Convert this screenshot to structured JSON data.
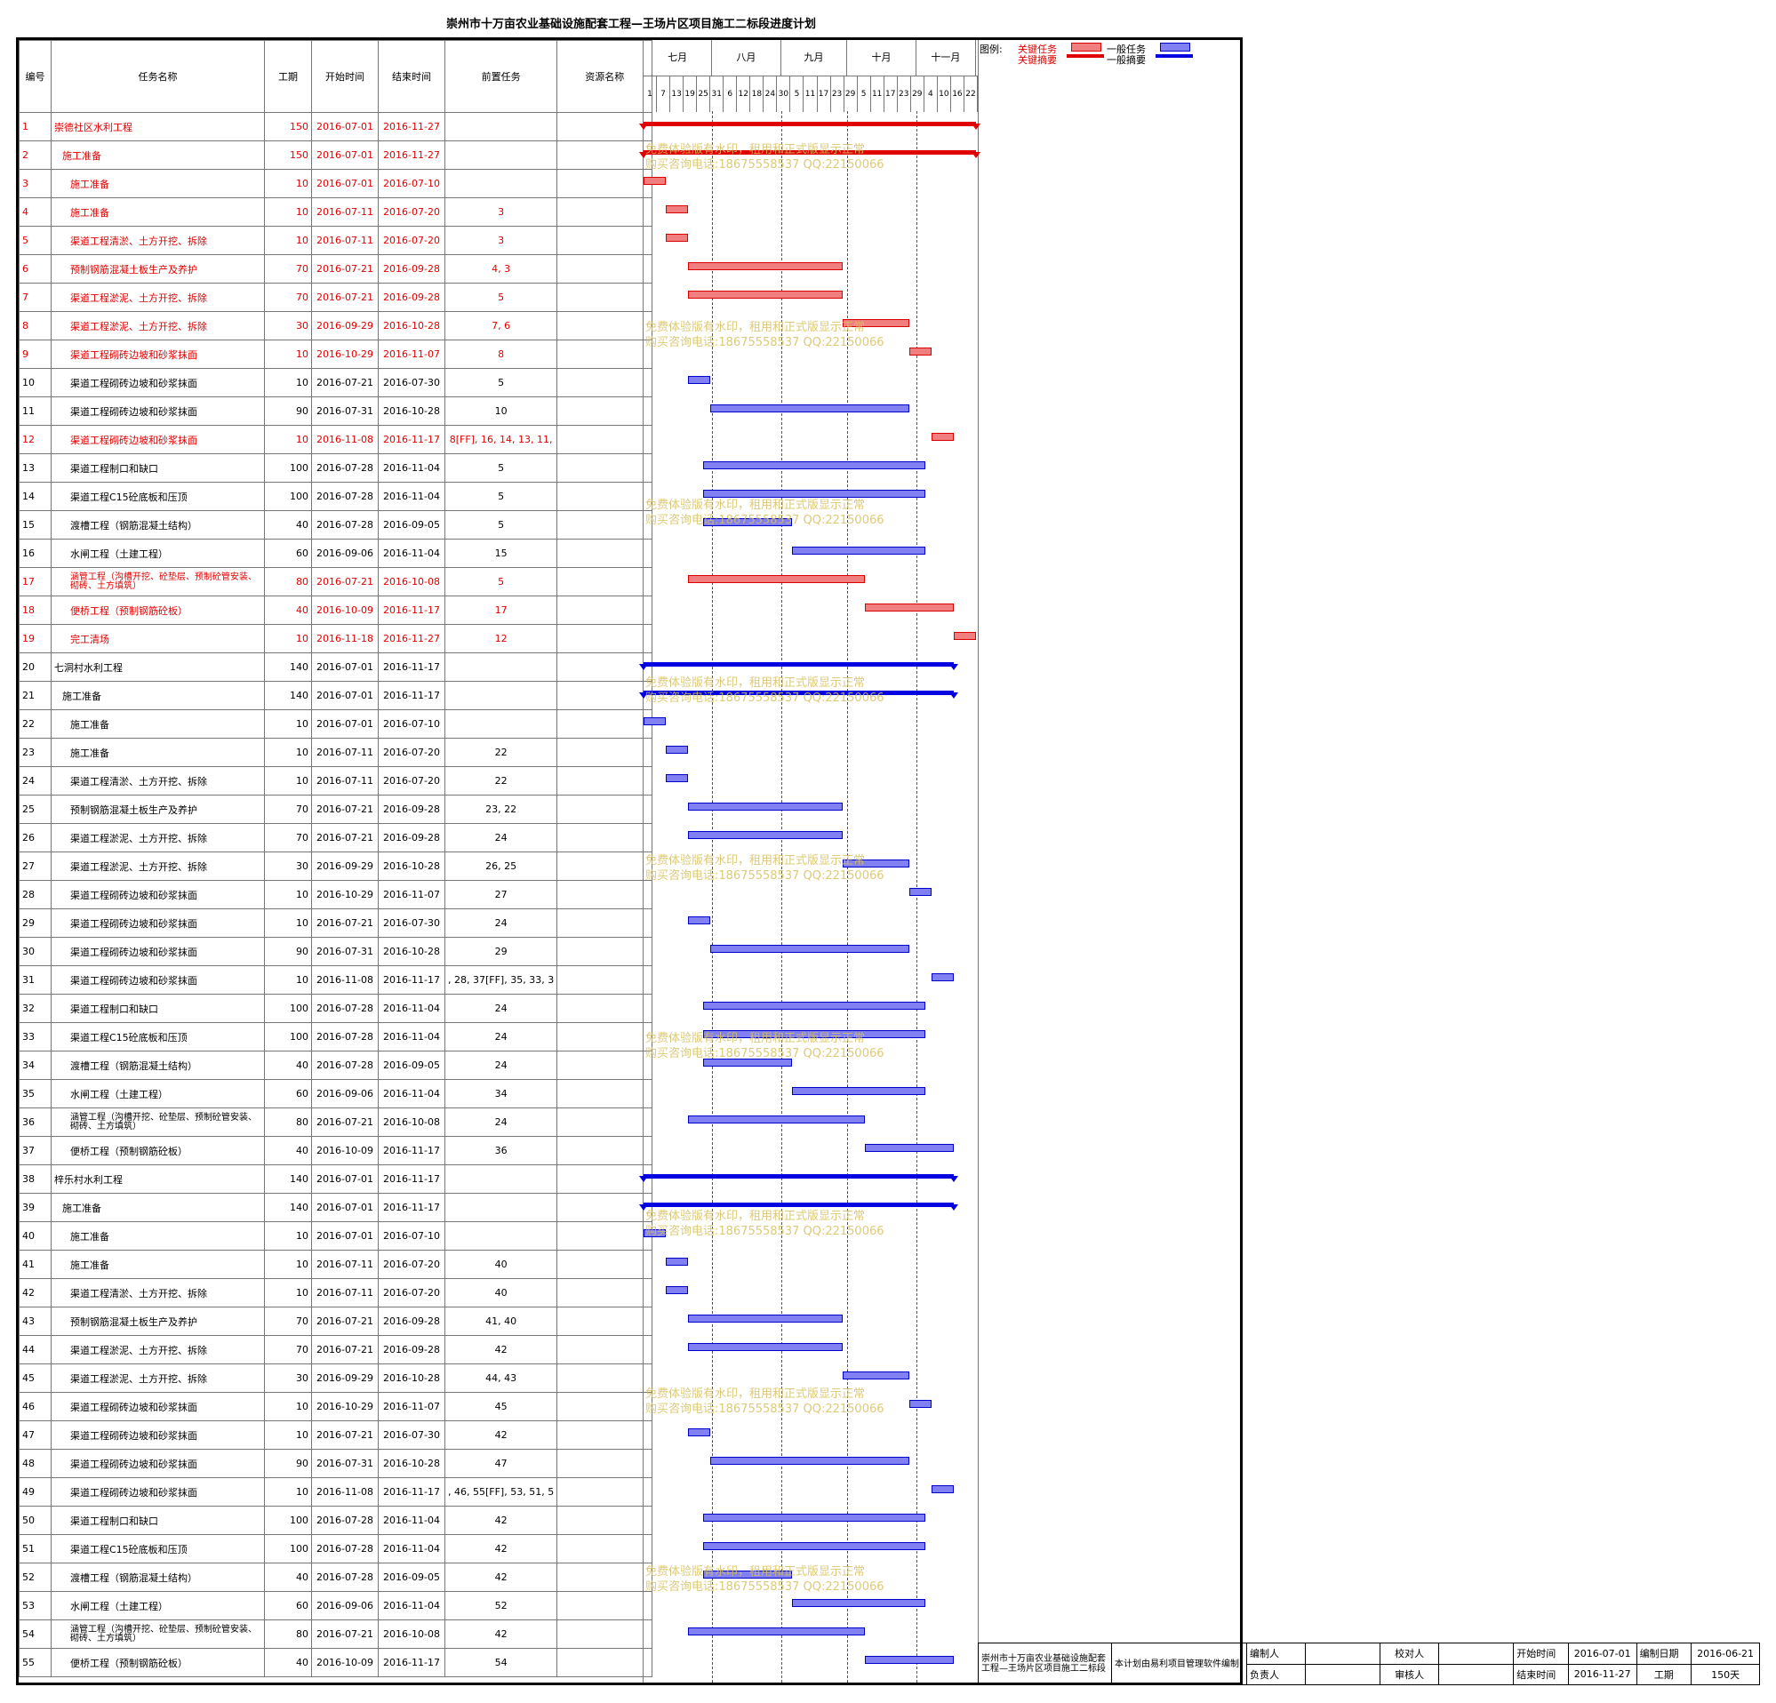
{
  "title": "崇州市十万亩农业基础设施配套工程—王场片区项目施工二标段进度计划",
  "columns": {
    "id": "编号",
    "name": "任务名称",
    "duration": "工期",
    "start": "开始时间",
    "end": "结束时间",
    "pred": "前置任务",
    "resource": "资源名称"
  },
  "months": [
    "七月",
    "八月",
    "九月",
    "十月",
    "十一月"
  ],
  "days": [
    "1",
    "7",
    "13",
    "19",
    "25",
    "31",
    "6",
    "12",
    "18",
    "24",
    "30",
    "5",
    "11",
    "17",
    "23",
    "29",
    "5",
    "11",
    "17",
    "23",
    "29",
    "4",
    "10",
    "16",
    "22"
  ],
  "tasks": [
    {
      "id": "1",
      "name": "崇德社区水利工程",
      "duration": "150",
      "start": "2016-07-01",
      "end": "2016-11-27",
      "pred": "",
      "critical": true,
      "summary": true,
      "level": 0
    },
    {
      "id": "2",
      "name": "施工准备",
      "duration": "150",
      "start": "2016-07-01",
      "end": "2016-11-27",
      "pred": "",
      "critical": true,
      "summary": true,
      "level": 1
    },
    {
      "id": "3",
      "name": "施工准备",
      "duration": "10",
      "start": "2016-07-01",
      "end": "2016-07-10",
      "pred": "",
      "critical": true,
      "level": 2
    },
    {
      "id": "4",
      "name": "施工准备",
      "duration": "10",
      "start": "2016-07-11",
      "end": "2016-07-20",
      "pred": "3",
      "critical": true,
      "level": 2
    },
    {
      "id": "5",
      "name": "渠道工程清淤、土方开挖、拆除",
      "duration": "10",
      "start": "2016-07-11",
      "end": "2016-07-20",
      "pred": "3",
      "critical": true,
      "level": 2
    },
    {
      "id": "6",
      "name": "预制钢筋混凝土板生产及养护",
      "duration": "70",
      "start": "2016-07-21",
      "end": "2016-09-28",
      "pred": "4, 3",
      "critical": true,
      "level": 2
    },
    {
      "id": "7",
      "name": "渠道工程淤泥、土方开挖、拆除",
      "duration": "70",
      "start": "2016-07-21",
      "end": "2016-09-28",
      "pred": "5",
      "critical": true,
      "level": 2
    },
    {
      "id": "8",
      "name": "渠道工程淤泥、土方开挖、拆除",
      "duration": "30",
      "start": "2016-09-29",
      "end": "2016-10-28",
      "pred": "7, 6",
      "critical": true,
      "level": 2
    },
    {
      "id": "9",
      "name": "渠道工程砌砖边坡和砂浆抹面",
      "duration": "10",
      "start": "2016-10-29",
      "end": "2016-11-07",
      "pred": "8",
      "critical": true,
      "level": 2
    },
    {
      "id": "10",
      "name": "渠道工程砌砖边坡和砂浆抹面",
      "duration": "10",
      "start": "2016-07-21",
      "end": "2016-07-30",
      "pred": "5",
      "critical": false,
      "level": 2
    },
    {
      "id": "11",
      "name": "渠道工程砌砖边坡和砂浆抹面",
      "duration": "90",
      "start": "2016-07-31",
      "end": "2016-10-28",
      "pred": "10",
      "critical": false,
      "level": 2
    },
    {
      "id": "12",
      "name": "渠道工程砌砖边坡和砂浆抹面",
      "duration": "10",
      "start": "2016-11-08",
      "end": "2016-11-17",
      "pred": "8[FF], 16, 14, 13, 11,",
      "critical": true,
      "level": 2
    },
    {
      "id": "13",
      "name": "渠道工程制口和缺口",
      "duration": "100",
      "start": "2016-07-28",
      "end": "2016-11-04",
      "pred": "5",
      "critical": false,
      "level": 2
    },
    {
      "id": "14",
      "name": "渠道工程C15砼底板和压顶",
      "duration": "100",
      "start": "2016-07-28",
      "end": "2016-11-04",
      "pred": "5",
      "critical": false,
      "level": 2
    },
    {
      "id": "15",
      "name": "渡槽工程（钢筋混凝土结构）",
      "duration": "40",
      "start": "2016-07-28",
      "end": "2016-09-05",
      "pred": "5",
      "critical": false,
      "level": 2
    },
    {
      "id": "16",
      "name": "水闸工程（土建工程）",
      "duration": "60",
      "start": "2016-09-06",
      "end": "2016-11-04",
      "pred": "15",
      "critical": false,
      "level": 2
    },
    {
      "id": "17",
      "name": "涵管工程（沟槽开挖、砼垫层、预制砼管安装、砌砖、土方填筑）",
      "duration": "80",
      "start": "2016-07-21",
      "end": "2016-10-08",
      "pred": "5",
      "critical": true,
      "level": 2
    },
    {
      "id": "18",
      "name": "便桥工程（预制钢筋砼板）",
      "duration": "40",
      "start": "2016-10-09",
      "end": "2016-11-17",
      "pred": "17",
      "critical": true,
      "level": 2
    },
    {
      "id": "19",
      "name": "完工清场",
      "duration": "10",
      "start": "2016-11-18",
      "end": "2016-11-27",
      "pred": "12",
      "critical": true,
      "level": 2
    },
    {
      "id": "20",
      "name": "七洞村水利工程",
      "duration": "140",
      "start": "2016-07-01",
      "end": "2016-11-17",
      "pred": "",
      "critical": false,
      "summary": true,
      "level": 0
    },
    {
      "id": "21",
      "name": "施工准备",
      "duration": "140",
      "start": "2016-07-01",
      "end": "2016-11-17",
      "pred": "",
      "critical": false,
      "summary": true,
      "level": 1
    },
    {
      "id": "22",
      "name": "施工准备",
      "duration": "10",
      "start": "2016-07-01",
      "end": "2016-07-10",
      "pred": "",
      "critical": false,
      "level": 2
    },
    {
      "id": "23",
      "name": "施工准备",
      "duration": "10",
      "start": "2016-07-11",
      "end": "2016-07-20",
      "pred": "22",
      "critical": false,
      "level": 2
    },
    {
      "id": "24",
      "name": "渠道工程清淤、土方开挖、拆除",
      "duration": "10",
      "start": "2016-07-11",
      "end": "2016-07-20",
      "pred": "22",
      "critical": false,
      "level": 2
    },
    {
      "id": "25",
      "name": "预制钢筋混凝土板生产及养护",
      "duration": "70",
      "start": "2016-07-21",
      "end": "2016-09-28",
      "pred": "23, 22",
      "critical": false,
      "level": 2
    },
    {
      "id": "26",
      "name": "渠道工程淤泥、土方开挖、拆除",
      "duration": "70",
      "start": "2016-07-21",
      "end": "2016-09-28",
      "pred": "24",
      "critical": false,
      "level": 2
    },
    {
      "id": "27",
      "name": "渠道工程淤泥、土方开挖、拆除",
      "duration": "30",
      "start": "2016-09-29",
      "end": "2016-10-28",
      "pred": "26, 25",
      "critical": false,
      "level": 2
    },
    {
      "id": "28",
      "name": "渠道工程砌砖边坡和砂浆抹面",
      "duration": "10",
      "start": "2016-10-29",
      "end": "2016-11-07",
      "pred": "27",
      "critical": false,
      "level": 2
    },
    {
      "id": "29",
      "name": "渠道工程砌砖边坡和砂浆抹面",
      "duration": "10",
      "start": "2016-07-21",
      "end": "2016-07-30",
      "pred": "24",
      "critical": false,
      "level": 2
    },
    {
      "id": "30",
      "name": "渠道工程砌砖边坡和砂浆抹面",
      "duration": "90",
      "start": "2016-07-31",
      "end": "2016-10-28",
      "pred": "29",
      "critical": false,
      "level": 2
    },
    {
      "id": "31",
      "name": "渠道工程砌砖边坡和砂浆抹面",
      "duration": "10",
      "start": "2016-11-08",
      "end": "2016-11-17",
      "pred": ", 28, 37[FF], 35, 33, 3",
      "critical": false,
      "level": 2
    },
    {
      "id": "32",
      "name": "渠道工程制口和缺口",
      "duration": "100",
      "start": "2016-07-28",
      "end": "2016-11-04",
      "pred": "24",
      "critical": false,
      "level": 2
    },
    {
      "id": "33",
      "name": "渠道工程C15砼底板和压顶",
      "duration": "100",
      "start": "2016-07-28",
      "end": "2016-11-04",
      "pred": "24",
      "critical": false,
      "level": 2
    },
    {
      "id": "34",
      "name": "渡槽工程（钢筋混凝土结构）",
      "duration": "40",
      "start": "2016-07-28",
      "end": "2016-09-05",
      "pred": "24",
      "critical": false,
      "level": 2
    },
    {
      "id": "35",
      "name": "水闸工程（土建工程）",
      "duration": "60",
      "start": "2016-09-06",
      "end": "2016-11-04",
      "pred": "34",
      "critical": false,
      "level": 2
    },
    {
      "id": "36",
      "name": "涵管工程（沟槽开挖、砼垫层、预制砼管安装、砌砖、土方填筑）",
      "duration": "80",
      "start": "2016-07-21",
      "end": "2016-10-08",
      "pred": "24",
      "critical": false,
      "level": 2
    },
    {
      "id": "37",
      "name": "便桥工程（预制钢筋砼板）",
      "duration": "40",
      "start": "2016-10-09",
      "end": "2016-11-17",
      "pred": "36",
      "critical": false,
      "level": 2
    },
    {
      "id": "38",
      "name": "梓乐村水利工程",
      "duration": "140",
      "start": "2016-07-01",
      "end": "2016-11-17",
      "pred": "",
      "critical": false,
      "summary": true,
      "level": 0
    },
    {
      "id": "39",
      "name": "施工准备",
      "duration": "140",
      "start": "2016-07-01",
      "end": "2016-11-17",
      "pred": "",
      "critical": false,
      "summary": true,
      "level": 1
    },
    {
      "id": "40",
      "name": "施工准备",
      "duration": "10",
      "start": "2016-07-01",
      "end": "2016-07-10",
      "pred": "",
      "critical": false,
      "level": 2
    },
    {
      "id": "41",
      "name": "施工准备",
      "duration": "10",
      "start": "2016-07-11",
      "end": "2016-07-20",
      "pred": "40",
      "critical": false,
      "level": 2
    },
    {
      "id": "42",
      "name": "渠道工程清淤、土方开挖、拆除",
      "duration": "10",
      "start": "2016-07-11",
      "end": "2016-07-20",
      "pred": "40",
      "critical": false,
      "level": 2
    },
    {
      "id": "43",
      "name": "预制钢筋混凝土板生产及养护",
      "duration": "70",
      "start": "2016-07-21",
      "end": "2016-09-28",
      "pred": "41, 40",
      "critical": false,
      "level": 2
    },
    {
      "id": "44",
      "name": "渠道工程淤泥、土方开挖、拆除",
      "duration": "70",
      "start": "2016-07-21",
      "end": "2016-09-28",
      "pred": "42",
      "critical": false,
      "level": 2
    },
    {
      "id": "45",
      "name": "渠道工程淤泥、土方开挖、拆除",
      "duration": "30",
      "start": "2016-09-29",
      "end": "2016-10-28",
      "pred": "44, 43",
      "critical": false,
      "level": 2
    },
    {
      "id": "46",
      "name": "渠道工程砌砖边坡和砂浆抹面",
      "duration": "10",
      "start": "2016-10-29",
      "end": "2016-11-07",
      "pred": "45",
      "critical": false,
      "level": 2
    },
    {
      "id": "47",
      "name": "渠道工程砌砖边坡和砂浆抹面",
      "duration": "10",
      "start": "2016-07-21",
      "end": "2016-07-30",
      "pred": "42",
      "critical": false,
      "level": 2
    },
    {
      "id": "48",
      "name": "渠道工程砌砖边坡和砂浆抹面",
      "duration": "90",
      "start": "2016-07-31",
      "end": "2016-10-28",
      "pred": "47",
      "critical": false,
      "level": 2
    },
    {
      "id": "49",
      "name": "渠道工程砌砖边坡和砂浆抹面",
      "duration": "10",
      "start": "2016-11-08",
      "end": "2016-11-17",
      "pred": ", 46, 55[FF], 53, 51, 5",
      "critical": false,
      "level": 2
    },
    {
      "id": "50",
      "name": "渠道工程制口和缺口",
      "duration": "100",
      "start": "2016-07-28",
      "end": "2016-11-04",
      "pred": "42",
      "critical": false,
      "level": 2
    },
    {
      "id": "51",
      "name": "渠道工程C15砼底板和压顶",
      "duration": "100",
      "start": "2016-07-28",
      "end": "2016-11-04",
      "pred": "42",
      "critical": false,
      "level": 2
    },
    {
      "id": "52",
      "name": "渡槽工程（钢筋混凝土结构）",
      "duration": "40",
      "start": "2016-07-28",
      "end": "2016-09-05",
      "pred": "42",
      "critical": false,
      "level": 2
    },
    {
      "id": "53",
      "name": "水闸工程（土建工程）",
      "duration": "60",
      "start": "2016-09-06",
      "end": "2016-11-04",
      "pred": "52",
      "critical": false,
      "level": 2
    },
    {
      "id": "54",
      "name": "涵管工程（沟槽开挖、砼垫层、预制砼管安装、砌砖、土方填筑）",
      "duration": "80",
      "start": "2016-07-21",
      "end": "2016-10-08",
      "pred": "42",
      "critical": false,
      "level": 2
    },
    {
      "id": "55",
      "name": "便桥工程（预制钢筋砼板）",
      "duration": "40",
      "start": "2016-10-09",
      "end": "2016-11-17",
      "pred": "54",
      "critical": false,
      "level": 2
    }
  ],
  "legend": {
    "label": "图例:",
    "critical_task": "关键任务",
    "critical_summary": "关键摘要",
    "normal_task": "一般任务",
    "normal_summary": "一般摘要",
    "critical_color": "#e00000",
    "normal_color": "#0000e0"
  },
  "watermark": {
    "line1": "免费体验版有水印，租用和正式版显示正常",
    "line2": "购买咨询电话:18675558537 QQ:22150066"
  },
  "footer": {
    "project": "崇州市十万亩农业基础设施配套工程—王场片区项目施工二标段",
    "note": "本计划由易利项目管理软件编制",
    "compiler_label": "编制人",
    "checker_label": "校对人",
    "start_label": "开始时间",
    "start_value": "2016-07-01",
    "date_label": "编制日期",
    "date_value": "2016-06-21",
    "owner_label": "负责人",
    "reviewer_label": "审核人",
    "end_label": "结束时间",
    "end_value": "2016-11-27",
    "duration_label": "工期",
    "duration_value": "150天"
  }
}
